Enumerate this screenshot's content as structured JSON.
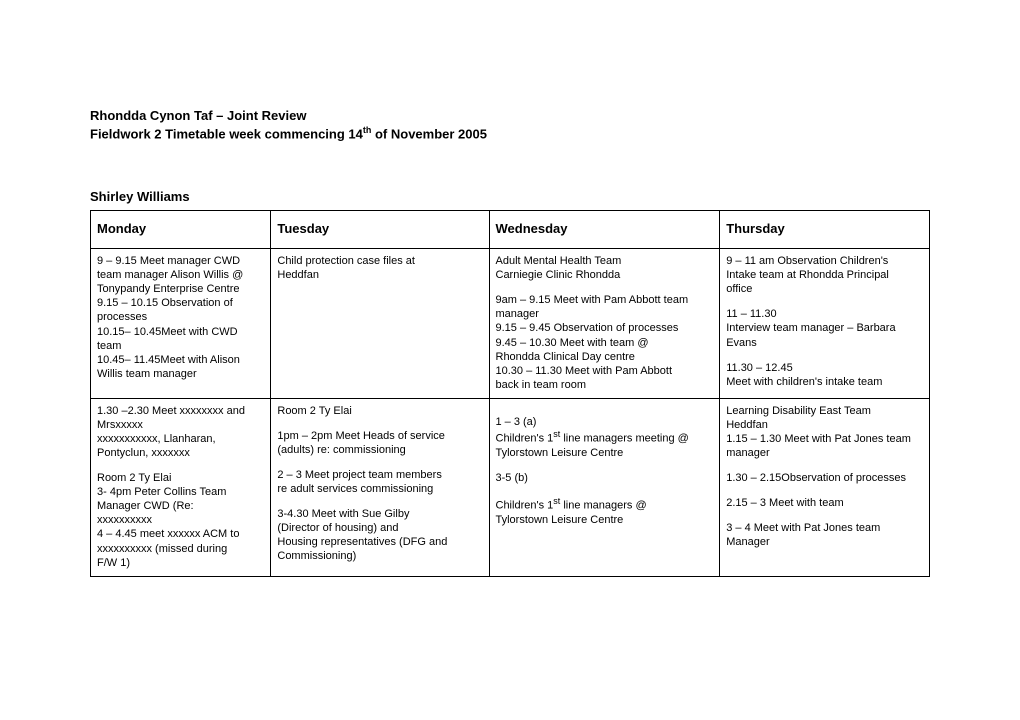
{
  "heading": {
    "line1": "Rhondda Cynon Taf – Joint Review",
    "line2_a": "Fieldwork 2 Timetable week commencing 14",
    "line2_sup": "th",
    "line2_b": " of November 2005"
  },
  "author": "Shirley Williams",
  "columns": {
    "mon": "Monday",
    "tue": "Tuesday",
    "wed": "Wednesday",
    "thu": "Thursday"
  },
  "row1": {
    "mon": [
      "9 – 9.15 Meet manager CWD",
      "team manager Alison Willis @",
      "Tonypandy Enterprise Centre",
      "9.15 – 10.15 Observation of",
      "processes",
      "10.15– 10.45Meet with CWD",
      "team",
      "10.45– 11.45Meet with Alison",
      "Willis team manager"
    ],
    "tue": [
      "Child protection case files at",
      "Heddfan"
    ],
    "wed": [
      "Adult Mental Health Team",
      "Carniegie Clinic Rhondda",
      "",
      "9am – 9.15 Meet with Pam Abbott team",
      "manager",
      "9.15 – 9.45 Observation of processes",
      "9.45 – 10.30 Meet with team @",
      "Rhondda Clinical Day centre",
      "10.30 – 11.30 Meet with Pam Abbott",
      "back in team room"
    ],
    "thu": [
      "9 – 11 am Observation Children's",
      "Intake team at Rhondda Principal",
      "office",
      "",
      "11 – 11.30",
      "Interview team manager – Barbara",
      "Evans",
      "",
      "11.30 – 12.45",
      "Meet with children's intake team"
    ]
  },
  "row2": {
    "mon": [
      "1.30 –2.30 Meet xxxxxxxx and",
      "Mrsxxxxx",
      "xxxxxxxxxxx, Llanharan,",
      "Pontyclun, xxxxxxx",
      "",
      "Room 2 Ty Elai",
      "3- 4pm Peter Collins Team",
      "Manager CWD (Re:",
      "xxxxxxxxxx",
      "4 – 4.45 meet xxxxxx ACM to",
      "xxxxxxxxxx (missed during",
      "F/W 1)"
    ],
    "tue": [
      "Room 2 Ty Elai",
      "",
      "1pm – 2pm Meet Heads of service",
      "(adults) re: commissioning",
      "",
      "2 – 3 Meet project team members",
      "re adult services commissioning",
      "",
      "3-4.30 Meet with Sue Gilby",
      "(Director of housing) and",
      "Housing representatives (DFG and",
      "Commissioning)"
    ],
    "wed": [
      "",
      "1 – 3 (a)",
      {
        "pre": "Children's 1",
        "sup": "st",
        "post": " line managers meeting @"
      },
      "Tylorstown Leisure Centre",
      "",
      "3-5 (b)",
      "",
      {
        "pre": "Children's 1",
        "sup": "st",
        "post": " line managers @"
      },
      "Tylorstown Leisure Centre"
    ],
    "thu": [
      "Learning Disability East Team",
      "Heddfan",
      "1.15 – 1.30 Meet with Pat Jones team",
      "manager",
      "",
      "1.30 – 2.15Observation of processes",
      "",
      "2.15 – 3 Meet with team",
      "",
      "3 – 4 Meet with Pat Jones team",
      "Manager"
    ]
  }
}
